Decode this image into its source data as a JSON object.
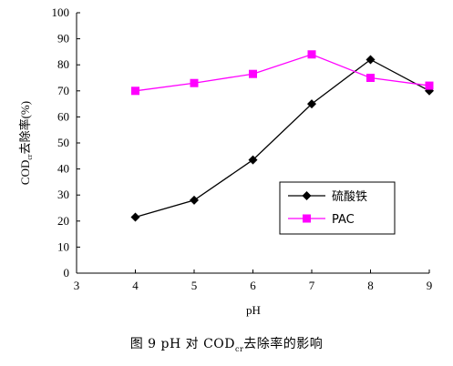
{
  "chart_data": {
    "type": "line",
    "xlabel": "pH",
    "ylabel": "COD",
    "ylabel_sub": "cr",
    "ylabel_rest": "去除率(%)",
    "xlim": [
      3,
      9
    ],
    "ylim": [
      0,
      100
    ],
    "xticks": [
      3,
      4,
      5,
      6,
      7,
      8,
      9
    ],
    "yticks": [
      0,
      10,
      20,
      30,
      40,
      50,
      60,
      70,
      80,
      90,
      100
    ],
    "grid": false,
    "legend_position": "right-middle",
    "series": [
      {
        "name": "硫酸铁",
        "color": "#000000",
        "marker": "diamond",
        "x": [
          4,
          5,
          6,
          7,
          8,
          9
        ],
        "y": [
          21.5,
          28,
          43.5,
          65,
          82,
          70
        ]
      },
      {
        "name": "PAC",
        "color": "#ff00ff",
        "marker": "square",
        "x": [
          4,
          5,
          6,
          7,
          8,
          9
        ],
        "y": [
          70,
          73,
          76.5,
          84,
          75,
          72
        ]
      }
    ]
  },
  "caption": {
    "prefix": "图 9    pH 对 COD",
    "sub": "cr",
    "suffix": "去除率的影响"
  }
}
